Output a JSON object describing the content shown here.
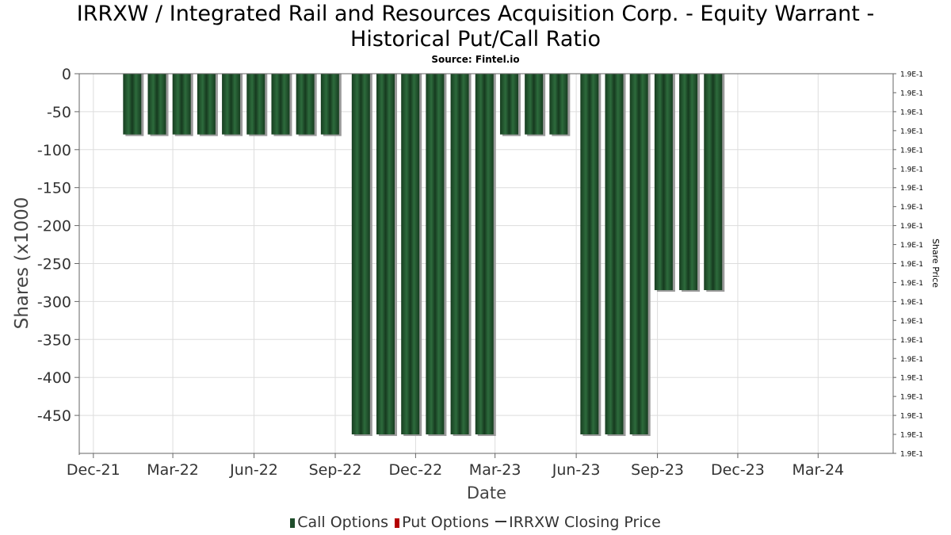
{
  "title_line1": "IRRXW / Integrated Rail and Resources Acquisition Corp. - Equity Warrant -",
  "title_line2": "Historical Put/Call Ratio",
  "subtitle": "Source: Fintel.io",
  "chart_data": {
    "type": "bar",
    "xlabel": "Date",
    "ylabel": "Shares (x1000",
    "y2label": "Share Price",
    "ylim": [
      -500,
      0
    ],
    "y_ticks": [
      0,
      -50,
      -100,
      -150,
      -200,
      -250,
      -300,
      -350,
      -400,
      -450
    ],
    "y2_tick_label": "1.9E-1",
    "y2_tick_count": 21,
    "x_range": [
      "2021-11-15",
      "2024-05-25"
    ],
    "x_ticks": [
      {
        "date": "2021-12-01",
        "label": "Dec-21"
      },
      {
        "date": "2022-03-01",
        "label": "Mar-22"
      },
      {
        "date": "2022-06-01",
        "label": "Jun-22"
      },
      {
        "date": "2022-09-01",
        "label": "Sep-22"
      },
      {
        "date": "2022-12-01",
        "label": "Dec-22"
      },
      {
        "date": "2023-03-01",
        "label": "Mar-23"
      },
      {
        "date": "2023-06-01",
        "label": "Jun-23"
      },
      {
        "date": "2023-09-01",
        "label": "Sep-23"
      },
      {
        "date": "2023-12-01",
        "label": "Dec-23"
      },
      {
        "date": "2024-03-01",
        "label": "Mar-24"
      }
    ],
    "grid": true,
    "legend_placement": "bottom",
    "series": [
      {
        "name": "Call Options",
        "color": "#1f4d2b",
        "points": [
          {
            "date": "2022-01-14",
            "value": -80
          },
          {
            "date": "2022-02-11",
            "value": -80
          },
          {
            "date": "2022-03-11",
            "value": -80
          },
          {
            "date": "2022-04-08",
            "value": -80
          },
          {
            "date": "2022-05-06",
            "value": -80
          },
          {
            "date": "2022-06-03",
            "value": -80
          },
          {
            "date": "2022-07-01",
            "value": -80
          },
          {
            "date": "2022-07-29",
            "value": -80
          },
          {
            "date": "2022-08-26",
            "value": -80
          },
          {
            "date": "2022-09-30",
            "value": -475
          },
          {
            "date": "2022-10-28",
            "value": -475
          },
          {
            "date": "2022-11-25",
            "value": -475
          },
          {
            "date": "2022-12-23",
            "value": -475
          },
          {
            "date": "2023-01-20",
            "value": -475
          },
          {
            "date": "2023-02-17",
            "value": -475
          },
          {
            "date": "2023-03-17",
            "value": -80
          },
          {
            "date": "2023-04-14",
            "value": -80
          },
          {
            "date": "2023-05-12",
            "value": -80
          },
          {
            "date": "2023-06-16",
            "value": -475
          },
          {
            "date": "2023-07-14",
            "value": -475
          },
          {
            "date": "2023-08-11",
            "value": -475
          },
          {
            "date": "2023-09-08",
            "value": -285
          },
          {
            "date": "2023-10-06",
            "value": -285
          },
          {
            "date": "2023-11-03",
            "value": -285
          }
        ]
      },
      {
        "name": "Put Options",
        "color": "#b30000",
        "points": []
      },
      {
        "name": "IRRXW Closing Price",
        "color": "#333333",
        "points": []
      }
    ]
  }
}
